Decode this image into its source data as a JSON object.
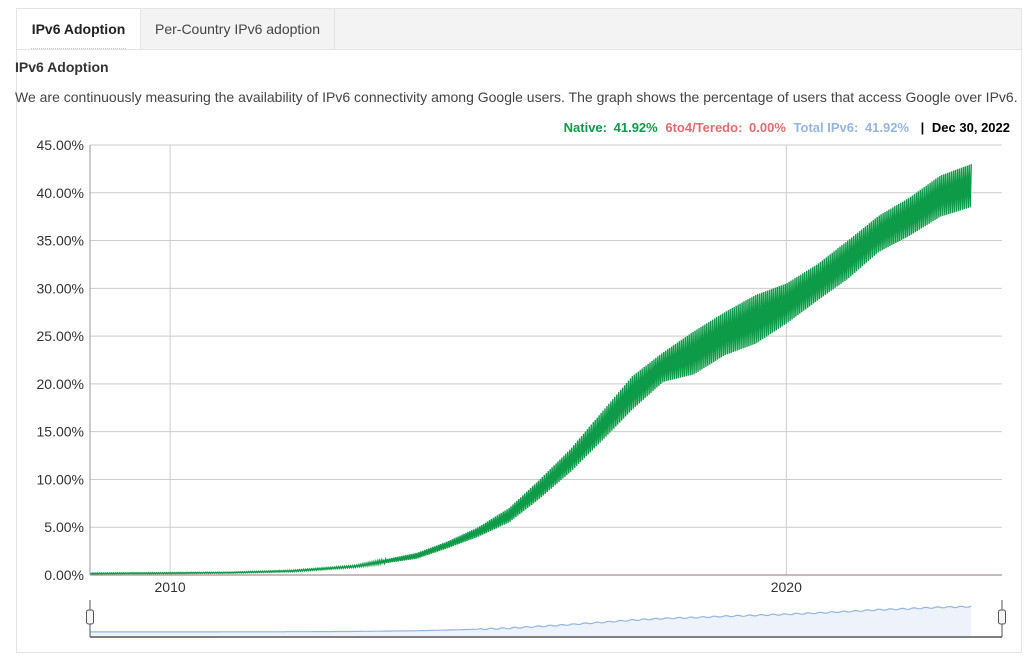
{
  "tabs": [
    {
      "label": "IPv6 Adoption",
      "active": true
    },
    {
      "label": "Per-Country IPv6 adoption",
      "active": false
    }
  ],
  "section_title": "IPv6 Adoption",
  "description": "We are continuously measuring the availability of IPv6 connectivity among Google users. The graph shows the percentage of users that access Google over IPv6.",
  "legend": {
    "native_label": "Native:",
    "native_value": "41.92%",
    "teredo_label": "6to4/Teredo:",
    "teredo_value": "0.00%",
    "total_label": "Total IPv6:",
    "total_value": "41.92%",
    "separator": "|",
    "date": "Dec 30, 2022"
  },
  "colors": {
    "native": "#0d9b48",
    "teredo": "#e06c6c",
    "total": "#93b6e0",
    "grid": "#cccccc"
  },
  "chart_data": {
    "type": "area",
    "title": "",
    "xlabel": "",
    "ylabel": "",
    "x_ticks": [
      {
        "label": "2010",
        "value": 2010
      },
      {
        "label": "2020",
        "value": 2020
      }
    ],
    "y_ticks": [
      "0.00%",
      "5.00%",
      "10.00%",
      "15.00%",
      "20.00%",
      "25.00%",
      "30.00%",
      "35.00%",
      "40.00%",
      "45.00%"
    ],
    "xlim": [
      2008.7,
      2023.5
    ],
    "ylim": [
      0,
      45
    ],
    "grid": true,
    "series": [
      {
        "name": "Native",
        "x": [
          2008.7,
          2010,
          2011,
          2012,
          2013,
          2014,
          2014.5,
          2015,
          2015.5,
          2016,
          2016.5,
          2017,
          2017.5,
          2018,
          2018.5,
          2019,
          2019.5,
          2020,
          2020.5,
          2021,
          2021.5,
          2022,
          2022.5,
          2023
        ],
        "y_low": [
          0.1,
          0.15,
          0.2,
          0.35,
          0.8,
          1.7,
          2.8,
          4.0,
          5.5,
          8.0,
          10.8,
          14.0,
          17.3,
          20.2,
          21.0,
          23.0,
          24.2,
          26.3,
          28.7,
          31.0,
          33.8,
          35.5,
          37.5,
          38.5
        ],
        "y_high": [
          0.2,
          0.25,
          0.3,
          0.5,
          1.0,
          2.3,
          3.5,
          5.0,
          7.0,
          10.0,
          13.2,
          17.0,
          20.8,
          23.3,
          25.5,
          27.5,
          29.3,
          30.5,
          32.5,
          35.0,
          37.6,
          39.5,
          41.8,
          43.0
        ]
      },
      {
        "name": "6to4/Teredo",
        "x": [
          2008.7,
          2023.5
        ],
        "y": [
          0.0,
          0.0
        ]
      }
    ]
  }
}
